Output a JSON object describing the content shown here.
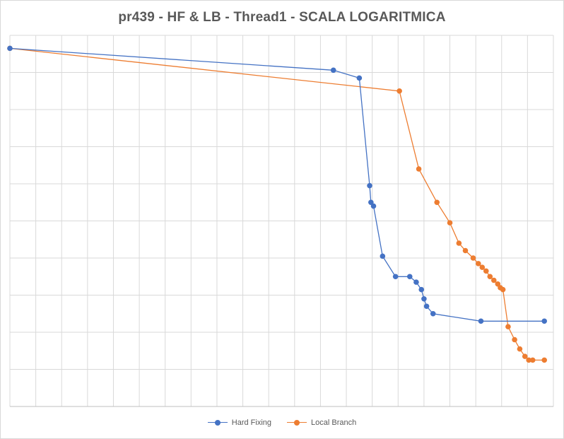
{
  "chart_data": {
    "type": "line",
    "title": "pr439 - HF & LB - Thread1 - SCALA LOGARITMICA",
    "xlabel": "",
    "ylabel": "",
    "grid": true,
    "legend_position": "bottom",
    "x_gridlines": 21,
    "y_gridlines": 10,
    "series": [
      {
        "name": "Hard Fixing",
        "color": "#4472C4",
        "x": [
          0.0,
          12.5,
          13.5,
          13.9,
          13.95,
          14.05,
          14.4,
          14.9,
          15.45,
          15.7,
          15.9,
          16.0,
          16.1,
          16.35,
          18.2,
          20.65
        ],
        "y": [
          9.65,
          9.06,
          8.85,
          5.95,
          5.5,
          5.4,
          4.05,
          3.5,
          3.5,
          3.35,
          3.15,
          2.9,
          2.7,
          2.5,
          2.3,
          2.3
        ]
      },
      {
        "name": "Local Branch",
        "color": "#ED7D31",
        "x": [
          0.0,
          15.05,
          15.8,
          16.5,
          17.0,
          17.35,
          17.6,
          17.9,
          18.1,
          18.25,
          18.4,
          18.55,
          18.7,
          18.85,
          18.95,
          19.05,
          19.25,
          19.5,
          19.7,
          19.9,
          20.05,
          20.2,
          20.65
        ],
        "y": [
          9.65,
          8.5,
          6.4,
          5.5,
          4.95,
          4.4,
          4.2,
          4.0,
          3.85,
          3.75,
          3.65,
          3.5,
          3.4,
          3.3,
          3.2,
          3.15,
          2.15,
          1.8,
          1.55,
          1.35,
          1.25,
          1.25,
          1.25
        ]
      }
    ]
  }
}
